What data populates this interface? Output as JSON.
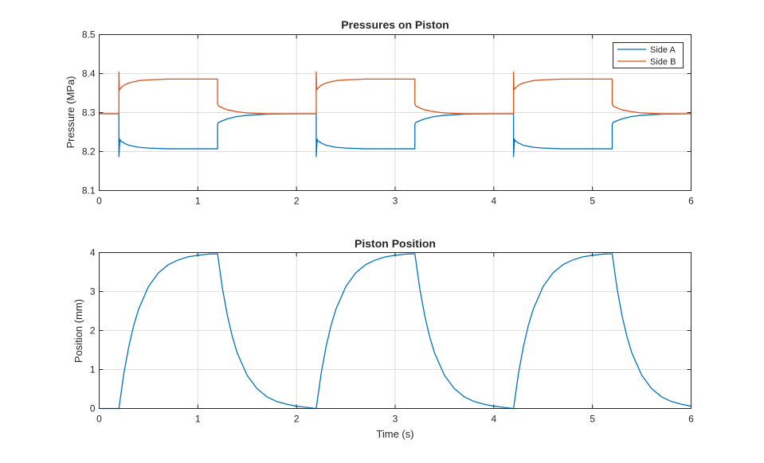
{
  "colors": {
    "side_a": "#0072BD",
    "side_b": "#D95319",
    "grid": "#DFDFDF",
    "axis": "#262626"
  },
  "chart_data": [
    {
      "type": "line",
      "title": "Pressures on Piston",
      "xlabel": "",
      "ylabel": "Pressure (MPa)",
      "xlim": [
        0,
        6
      ],
      "ylim": [
        8.1,
        8.5
      ],
      "xticks": [
        "0",
        "1",
        "2",
        "3",
        "4",
        "5",
        "6"
      ],
      "yticks": [
        "8.1",
        "8.2",
        "8.3",
        "8.4",
        "8.5"
      ],
      "grid": true,
      "legend": {
        "placement": "top-right",
        "entries": [
          "Side A",
          "Side B"
        ]
      },
      "series": [
        {
          "name": "Side A",
          "x": [
            0,
            0.2,
            0.2,
            0.21,
            0.215,
            0.25,
            0.3,
            0.4,
            0.5,
            0.7,
            1.0,
            1.2,
            1.2,
            1.21,
            1.25,
            1.3,
            1.4,
            1.5,
            1.7,
            2.0,
            2.2,
            2.2,
            2.21,
            2.215,
            2.25,
            2.3,
            2.4,
            2.5,
            2.7,
            3.0,
            3.2,
            3.2,
            3.21,
            3.25,
            3.3,
            3.4,
            3.5,
            3.7,
            4.0,
            4.2,
            4.2,
            4.21,
            4.215,
            4.25,
            4.3,
            4.4,
            4.5,
            4.7,
            5.0,
            5.2,
            5.2,
            5.21,
            5.25,
            5.3,
            5.4,
            5.5,
            5.7,
            6.0
          ],
          "y": [
            8.297,
            8.297,
            8.187,
            8.232,
            8.228,
            8.222,
            8.216,
            8.211,
            8.209,
            8.207,
            8.207,
            8.207,
            8.27,
            8.275,
            8.279,
            8.284,
            8.29,
            8.293,
            8.296,
            8.297,
            8.297,
            8.187,
            8.232,
            8.228,
            8.222,
            8.216,
            8.211,
            8.209,
            8.207,
            8.207,
            8.207,
            8.27,
            8.275,
            8.279,
            8.284,
            8.29,
            8.293,
            8.296,
            8.297,
            8.297,
            8.187,
            8.232,
            8.228,
            8.222,
            8.216,
            8.211,
            8.209,
            8.207,
            8.207,
            8.207,
            8.27,
            8.275,
            8.279,
            8.284,
            8.29,
            8.293,
            8.296,
            8.297
          ]
        },
        {
          "name": "Side B",
          "x": [
            0,
            0.2,
            0.2,
            0.205,
            0.215,
            0.25,
            0.3,
            0.4,
            0.5,
            0.7,
            1.0,
            1.2,
            1.2,
            1.21,
            1.25,
            1.3,
            1.4,
            1.5,
            1.7,
            2.0,
            2.2,
            2.2,
            2.205,
            2.215,
            2.25,
            2.3,
            2.4,
            2.5,
            2.7,
            3.0,
            3.2,
            3.2,
            3.21,
            3.25,
            3.3,
            3.4,
            3.5,
            3.7,
            4.0,
            4.2,
            4.2,
            4.205,
            4.215,
            4.25,
            4.3,
            4.4,
            4.5,
            4.7,
            5.0,
            5.2,
            5.2,
            5.21,
            5.25,
            5.3,
            5.4,
            5.5,
            5.7,
            6.0
          ],
          "y": [
            8.297,
            8.297,
            8.404,
            8.358,
            8.362,
            8.37,
            8.376,
            8.382,
            8.384,
            8.386,
            8.386,
            8.386,
            8.322,
            8.317,
            8.312,
            8.307,
            8.302,
            8.299,
            8.297,
            8.297,
            8.297,
            8.404,
            8.358,
            8.362,
            8.37,
            8.376,
            8.382,
            8.384,
            8.386,
            8.386,
            8.386,
            8.322,
            8.317,
            8.312,
            8.307,
            8.302,
            8.299,
            8.297,
            8.297,
            8.297,
            8.404,
            8.358,
            8.362,
            8.37,
            8.376,
            8.382,
            8.384,
            8.386,
            8.386,
            8.386,
            8.322,
            8.317,
            8.312,
            8.307,
            8.302,
            8.299,
            8.297,
            8.297
          ]
        }
      ]
    },
    {
      "type": "line",
      "title": "Piston Position",
      "xlabel": "Time (s)",
      "ylabel": "Position (mm)",
      "xlim": [
        0,
        6
      ],
      "ylim": [
        0,
        4
      ],
      "xticks": [
        "0",
        "1",
        "2",
        "3",
        "4",
        "5",
        "6"
      ],
      "yticks": [
        "0",
        "1",
        "2",
        "3",
        "4"
      ],
      "grid": true,
      "series": [
        {
          "x": [
            0,
            0.2,
            0.25,
            0.3,
            0.35,
            0.4,
            0.5,
            0.6,
            0.7,
            0.8,
            0.9,
            1.0,
            1.1,
            1.2,
            1.25,
            1.3,
            1.35,
            1.4,
            1.5,
            1.6,
            1.7,
            1.8,
            1.9,
            2.0,
            2.2,
            2.25,
            2.3,
            2.35,
            2.4,
            2.5,
            2.6,
            2.7,
            2.8,
            2.9,
            3.0,
            3.1,
            3.2,
            3.25,
            3.3,
            3.35,
            3.4,
            3.5,
            3.6,
            3.7,
            3.8,
            3.9,
            4.0,
            4.2,
            4.25,
            4.3,
            4.35,
            4.4,
            4.5,
            4.6,
            4.7,
            4.8,
            4.9,
            5.0,
            5.1,
            5.2,
            5.25,
            5.3,
            5.35,
            5.4,
            5.5,
            5.6,
            5.7,
            5.8,
            5.9,
            6.0
          ],
          "y": [
            0,
            0,
            0.9,
            1.59,
            2.13,
            2.55,
            3.13,
            3.48,
            3.69,
            3.81,
            3.89,
            3.93,
            3.96,
            3.97,
            3.07,
            2.38,
            1.84,
            1.42,
            0.85,
            0.51,
            0.3,
            0.18,
            0.11,
            0.06,
            0,
            0.9,
            1.59,
            2.13,
            2.55,
            3.13,
            3.48,
            3.69,
            3.81,
            3.89,
            3.93,
            3.96,
            3.97,
            3.07,
            2.38,
            1.84,
            1.42,
            0.85,
            0.51,
            0.3,
            0.18,
            0.11,
            0.06,
            0,
            0.9,
            1.59,
            2.13,
            2.55,
            3.13,
            3.48,
            3.69,
            3.81,
            3.89,
            3.93,
            3.96,
            3.97,
            3.07,
            2.38,
            1.84,
            1.42,
            0.85,
            0.51,
            0.3,
            0.18,
            0.11,
            0.06
          ]
        }
      ]
    }
  ]
}
